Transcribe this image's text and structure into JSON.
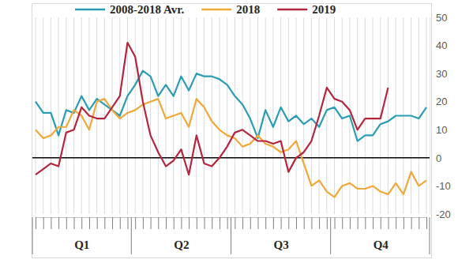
{
  "chart_data": {
    "type": "line",
    "categories": [
      null,
      null,
      null,
      null,
      null,
      null,
      "Q1",
      null,
      null,
      null,
      null,
      null,
      null,
      null,
      null,
      null,
      null,
      null,
      null,
      "Q2",
      null,
      null,
      null,
      null,
      null,
      null,
      null,
      null,
      null,
      null,
      null,
      null,
      "Q3",
      null,
      null,
      null,
      null,
      null,
      null,
      null,
      null,
      null,
      null,
      null,
      null,
      "Q4",
      null,
      null,
      null,
      null,
      null,
      null
    ],
    "series": [
      {
        "name": "2008-2018 Avr.",
        "color": "#2a9db4",
        "values": [
          20,
          16,
          16,
          8,
          17,
          16,
          22,
          17,
          21,
          19,
          17,
          15,
          22,
          26,
          31,
          29,
          22,
          26,
          22,
          29,
          24,
          30,
          29,
          29,
          28,
          26,
          22,
          19,
          14,
          7,
          17,
          11,
          18,
          13,
          15,
          12,
          14,
          11,
          17,
          18,
          14,
          15,
          6,
          8,
          8,
          12,
          13,
          15,
          15,
          15,
          14,
          18
        ]
      },
      {
        "name": "2018",
        "color": "#efa83a",
        "values": [
          10,
          7,
          8,
          11,
          11,
          17,
          15,
          10,
          20,
          21,
          17,
          14,
          16,
          17,
          19,
          20,
          21,
          14,
          15,
          16,
          11,
          21,
          18,
          13,
          10,
          8,
          7,
          4,
          5,
          8,
          5,
          4,
          2,
          3,
          6,
          -2,
          -10,
          -8,
          -12,
          -14,
          -10,
          -9,
          -11,
          -11,
          -10,
          -12,
          -13,
          -9,
          -13,
          -5,
          -10,
          -8
        ]
      },
      {
        "name": "2019",
        "color": "#b3263d",
        "values": [
          -6,
          -4,
          -2,
          -3,
          9,
          10,
          18,
          15,
          14,
          14,
          18,
          22,
          41,
          36,
          20,
          8,
          2,
          -3,
          -1,
          3,
          -6,
          8,
          -2,
          -3,
          0,
          4,
          9,
          10,
          8,
          6,
          6,
          5,
          6,
          -5,
          0,
          2,
          6,
          15,
          25,
          21,
          20,
          17,
          10,
          14,
          14,
          14,
          25,
          null,
          null,
          null,
          null,
          null
        ]
      }
    ],
    "ylim": [
      -20,
      50
    ],
    "yticks": [
      -20,
      -10,
      0,
      10,
      20,
      30,
      40,
      50
    ],
    "grid": true,
    "legend": "top"
  }
}
